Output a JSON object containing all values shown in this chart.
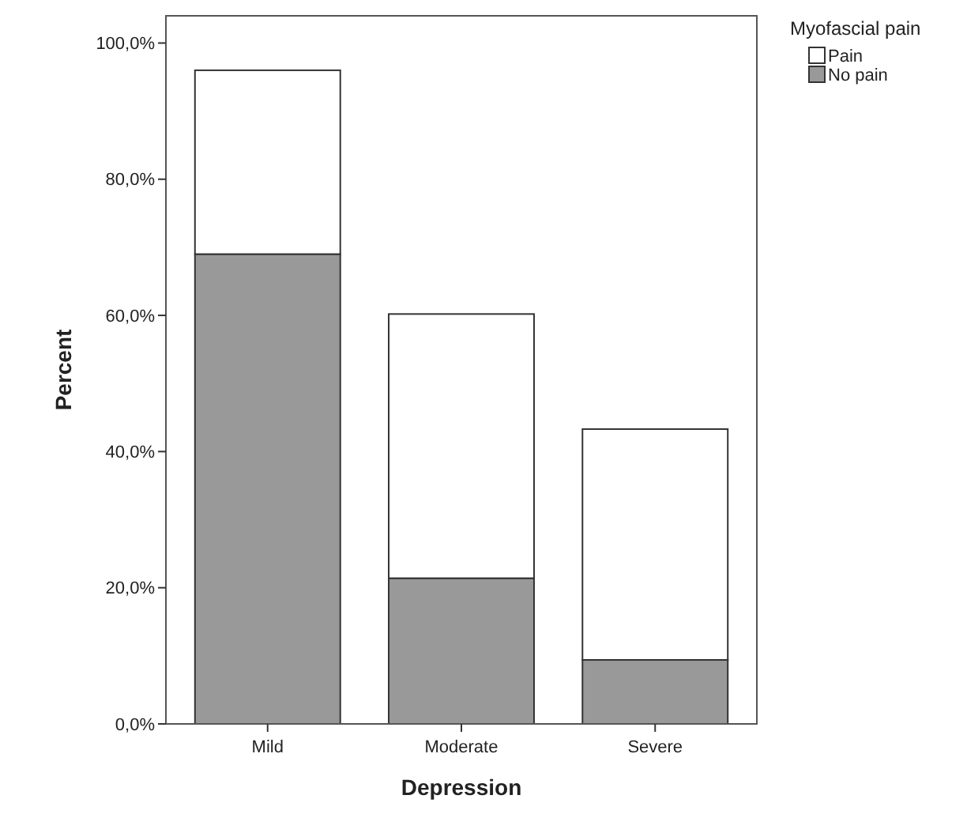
{
  "chart_data": {
    "type": "bar",
    "stacked": true,
    "xlabel": "Depression",
    "ylabel": "Percent",
    "legend_title": "Myofascial pain",
    "legend": "top right",
    "grid": false,
    "categories": [
      "Mild",
      "Moderate",
      "Severe"
    ],
    "series": [
      {
        "name": "No pain",
        "color": "#999999",
        "values": [
          69.0,
          21.4,
          9.4
        ]
      },
      {
        "name": "Pain",
        "color": "#ffffff",
        "values": [
          27.0,
          38.8,
          33.9
        ]
      }
    ],
    "ylim": [
      0,
      104
    ],
    "yticks": [
      {
        "value": 0,
        "label": "0,0%"
      },
      {
        "value": 20,
        "label": "20,0%"
      },
      {
        "value": 40,
        "label": "40,0%"
      },
      {
        "value": 60,
        "label": "60,0%"
      },
      {
        "value": 80,
        "label": "80,0%"
      },
      {
        "value": 100,
        "label": "100,0%"
      }
    ]
  }
}
